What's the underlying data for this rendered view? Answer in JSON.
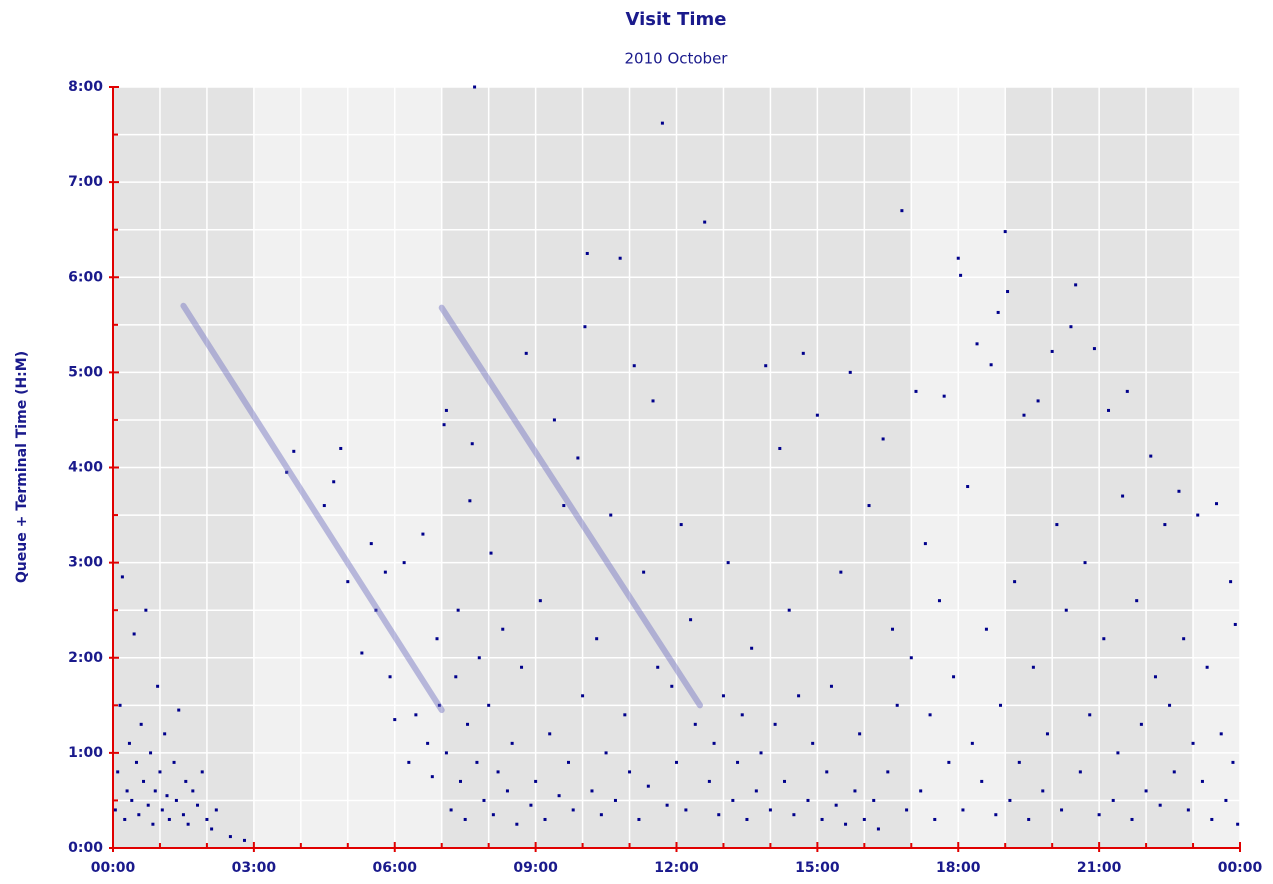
{
  "chart_data": {
    "type": "scatter",
    "title": "Visit Time",
    "subtitle": "2010 October",
    "y_label": "Queue + Terminal Time (H:M)",
    "color": "#00008b",
    "xlim": [
      0,
      24
    ],
    "ylim": [
      0,
      8
    ],
    "xticks": [
      {
        "value": 0,
        "label": "00:00"
      },
      {
        "value": 3,
        "label": "03:00"
      },
      {
        "value": 6,
        "label": "06:00"
      },
      {
        "value": 9,
        "label": "09:00"
      },
      {
        "value": 12,
        "label": "12:00"
      },
      {
        "value": 15,
        "label": "15:00"
      },
      {
        "value": 18,
        "label": "18:00"
      },
      {
        "value": 21,
        "label": "21:00"
      },
      {
        "value": 24,
        "label": "00:00"
      }
    ],
    "yticks": [
      {
        "value": 0,
        "label": "0:00"
      },
      {
        "value": 1,
        "label": "1:00"
      },
      {
        "value": 2,
        "label": "2:00"
      },
      {
        "value": 3,
        "label": "3:00"
      },
      {
        "value": 4,
        "label": "4:00"
      },
      {
        "value": 5,
        "label": "5:00"
      },
      {
        "value": 6,
        "label": "6:00"
      },
      {
        "value": 7,
        "label": "7:00"
      },
      {
        "value": 8,
        "label": "8:00"
      }
    ],
    "xminorticks": [
      1,
      2,
      4,
      5,
      7,
      8,
      10,
      11,
      13,
      14,
      16,
      17,
      19,
      20,
      22,
      23
    ],
    "yminorticks": [
      0.5,
      1.5,
      2.5,
      3.5,
      4.5,
      5.5,
      6.5,
      7.5
    ],
    "grid": true,
    "shaded_bands": [
      [
        0,
        3
      ],
      [
        7,
        17
      ],
      [
        19,
        23
      ]
    ],
    "trend_lines": [
      {
        "x": [
          1.5,
          7.0
        ],
        "y": [
          5.7,
          1.45
        ]
      },
      {
        "x": [
          7.0,
          12.5
        ],
        "y": [
          5.68,
          1.5
        ]
      }
    ],
    "x": [
      0.05,
      0.1,
      0.15,
      0.2,
      0.25,
      0.3,
      0.35,
      0.4,
      0.45,
      0.5,
      0.55,
      0.6,
      0.65,
      0.7,
      0.75,
      0.8,
      0.85,
      0.9,
      0.95,
      1.0,
      1.05,
      1.1,
      1.15,
      1.2,
      1.3,
      1.35,
      1.4,
      1.5,
      1.55,
      1.6,
      1.7,
      1.8,
      1.9,
      2.0,
      2.1,
      2.2,
      2.5,
      2.8,
      3.7,
      3.85,
      4.5,
      4.7,
      4.85,
      5.0,
      5.3,
      5.5,
      5.6,
      5.8,
      5.9,
      6.0,
      6.2,
      6.3,
      6.45,
      6.6,
      6.7,
      6.8,
      6.9,
      6.95,
      7.05,
      7.1,
      7.1,
      7.2,
      7.3,
      7.35,
      7.4,
      7.5,
      7.55,
      7.6,
      7.65,
      7.7,
      7.75,
      7.8,
      7.9,
      8.0,
      8.05,
      8.1,
      8.2,
      8.3,
      8.4,
      8.5,
      8.6,
      8.7,
      8.8,
      8.9,
      9.0,
      9.1,
      9.2,
      9.3,
      9.4,
      9.5,
      9.6,
      9.7,
      9.8,
      9.9,
      10.0,
      10.05,
      10.1,
      10.2,
      10.3,
      10.4,
      10.5,
      10.6,
      10.7,
      10.8,
      10.9,
      11.0,
      11.1,
      11.2,
      11.3,
      11.4,
      11.5,
      11.6,
      11.7,
      11.8,
      11.9,
      12.0,
      12.1,
      12.2,
      12.3,
      12.4,
      12.6,
      12.7,
      12.8,
      12.9,
      13.0,
      13.1,
      13.2,
      13.3,
      13.4,
      13.5,
      13.6,
      13.7,
      13.8,
      13.9,
      14.0,
      14.1,
      14.2,
      14.3,
      14.4,
      14.5,
      14.6,
      14.7,
      14.8,
      14.9,
      15.0,
      15.1,
      15.2,
      15.3,
      15.4,
      15.5,
      15.6,
      15.7,
      15.8,
      15.9,
      16.0,
      16.1,
      16.2,
      16.3,
      16.4,
      16.5,
      16.6,
      16.7,
      16.8,
      16.9,
      17.0,
      17.1,
      17.2,
      17.3,
      17.4,
      17.5,
      17.6,
      17.7,
      17.8,
      17.9,
      18.0,
      18.05,
      18.1,
      18.2,
      18.3,
      18.4,
      18.5,
      18.6,
      18.7,
      18.8,
      18.85,
      18.9,
      19.0,
      19.05,
      19.1,
      19.2,
      19.3,
      19.4,
      19.5,
      19.6,
      19.7,
      19.8,
      19.9,
      20.0,
      20.1,
      20.2,
      20.3,
      20.4,
      20.5,
      20.6,
      20.7,
      20.8,
      20.9,
      21.0,
      21.1,
      21.2,
      21.3,
      21.4,
      21.5,
      21.6,
      21.7,
      21.8,
      21.9,
      22.0,
      22.1,
      22.2,
      22.3,
      22.4,
      22.5,
      22.6,
      22.7,
      22.8,
      22.9,
      23.0,
      23.1,
      23.2,
      23.3,
      23.4,
      23.5,
      23.6,
      23.7,
      23.8,
      23.85,
      23.9,
      23.95
    ],
    "values": [
      0.4,
      0.8,
      1.5,
      2.85,
      0.3,
      0.6,
      1.1,
      0.5,
      2.25,
      0.9,
      0.35,
      1.3,
      0.7,
      2.5,
      0.45,
      1.0,
      0.25,
      0.6,
      1.7,
      0.8,
      0.4,
      1.2,
      0.55,
      0.3,
      0.9,
      0.5,
      1.45,
      0.35,
      0.7,
      0.25,
      0.6,
      0.45,
      0.8,
      0.3,
      0.2,
      0.4,
      0.12,
      0.08,
      3.95,
      4.17,
      3.6,
      3.85,
      4.2,
      2.8,
      2.05,
      3.2,
      2.5,
      2.9,
      1.8,
      1.35,
      3.0,
      0.9,
      1.4,
      3.3,
      1.1,
      0.75,
      2.2,
      1.5,
      4.45,
      4.6,
      1.0,
      0.4,
      1.8,
      2.5,
      0.7,
      0.3,
      1.3,
      3.65,
      4.25,
      8.0,
      0.9,
      2.0,
      0.5,
      1.5,
      3.1,
      0.35,
      0.8,
      2.3,
      0.6,
      1.1,
      0.25,
      1.9,
      5.2,
      0.45,
      0.7,
      2.6,
      0.3,
      1.2,
      4.5,
      0.55,
      3.6,
      0.9,
      0.4,
      4.1,
      1.6,
      5.48,
      6.25,
      0.6,
      2.2,
      0.35,
      1.0,
      3.5,
      0.5,
      6.2,
      1.4,
      0.8,
      5.07,
      0.3,
      2.9,
      0.65,
      4.7,
      1.9,
      7.62,
      0.45,
      1.7,
      0.9,
      3.4,
      0.4,
      2.4,
      1.3,
      6.58,
      0.7,
      1.1,
      0.35,
      1.6,
      3.0,
      0.5,
      0.9,
      1.4,
      0.3,
      2.1,
      0.6,
      1.0,
      5.07,
      0.4,
      1.3,
      4.2,
      0.7,
      2.5,
      0.35,
      1.6,
      5.2,
      0.5,
      1.1,
      4.55,
      0.3,
      0.8,
      1.7,
      0.45,
      2.9,
      0.25,
      5.0,
      0.6,
      1.2,
      0.3,
      3.6,
      0.5,
      0.2,
      4.3,
      0.8,
      2.3,
      1.5,
      6.7,
      0.4,
      2.0,
      4.8,
      0.6,
      3.2,
      1.4,
      0.3,
      2.6,
      4.75,
      0.9,
      1.8,
      6.2,
      6.02,
      0.4,
      3.8,
      1.1,
      5.3,
      0.7,
      2.3,
      5.08,
      0.35,
      5.63,
      1.5,
      6.48,
      5.85,
      0.5,
      2.8,
      0.9,
      4.55,
      0.3,
      1.9,
      4.7,
      0.6,
      1.2,
      5.22,
      3.4,
      0.4,
      2.5,
      5.48,
      5.92,
      0.8,
      3.0,
      1.4,
      5.25,
      0.35,
      2.2,
      4.6,
      0.5,
      1.0,
      3.7,
      4.8,
      0.3,
      2.6,
      1.3,
      0.6,
      4.12,
      1.8,
      0.45,
      3.4,
      1.5,
      0.8,
      3.75,
      2.2,
      0.4,
      1.1,
      3.5,
      0.7,
      1.9,
      0.3,
      3.62,
      1.2,
      0.5,
      2.8,
      0.9,
      2.35,
      0.25
    ]
  }
}
